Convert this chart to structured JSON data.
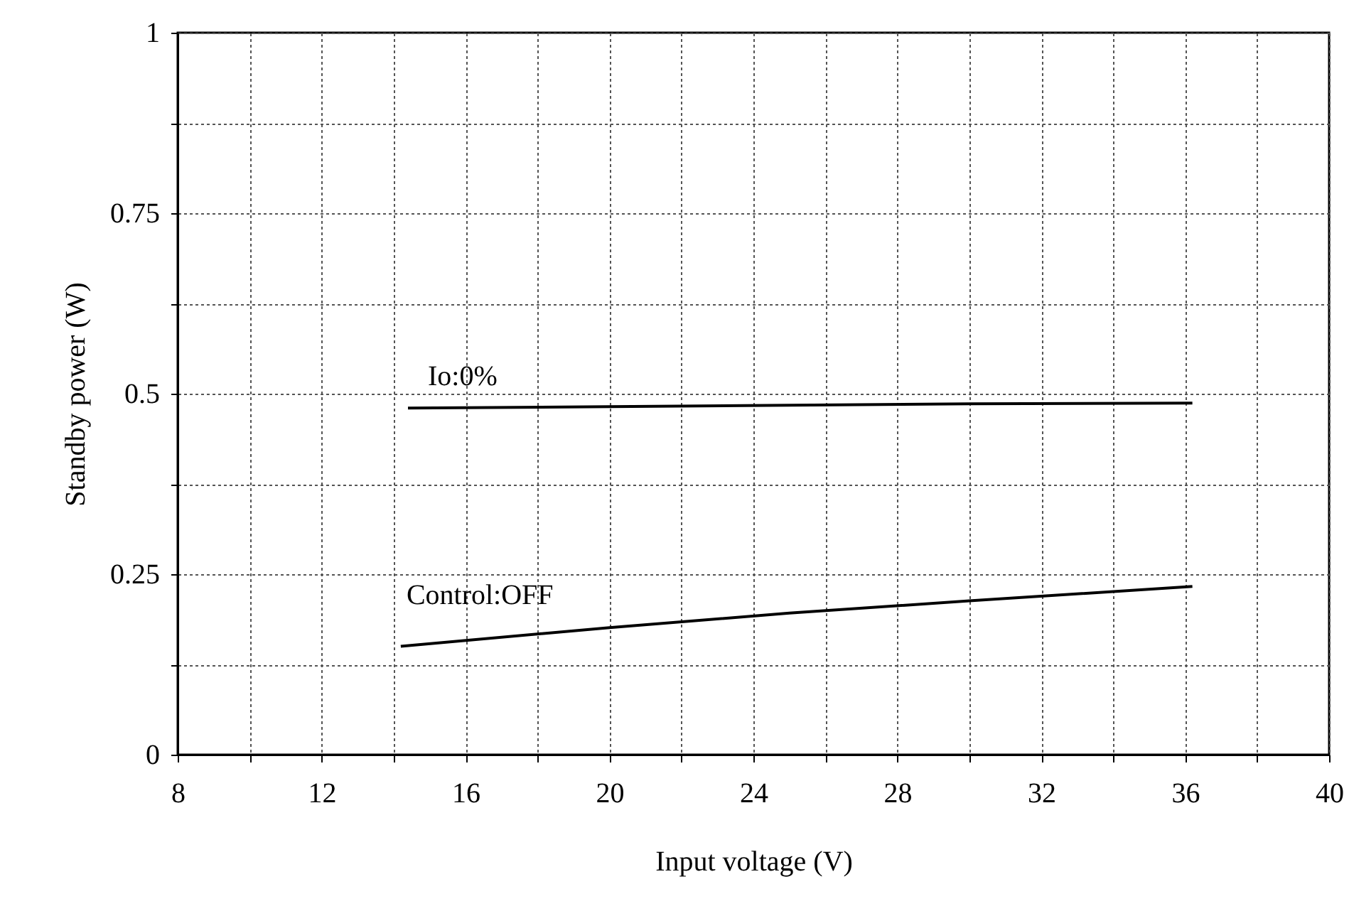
{
  "chart_data": {
    "type": "line",
    "xlabel": "Input voltage (V)",
    "ylabel": "Standby power (W)",
    "xlim": [
      8,
      40
    ],
    "ylim": [
      0,
      1
    ],
    "xticks": [
      8,
      {
        "value": 10,
        "label": null
      },
      12,
      {
        "value": 14,
        "label": null
      },
      16,
      {
        "value": 18,
        "label": null
      },
      20,
      {
        "value": 22,
        "label": null
      },
      24,
      {
        "value": 26,
        "label": null
      },
      28,
      {
        "value": 30,
        "label": null
      },
      32,
      {
        "value": 34,
        "label": null
      },
      36,
      {
        "value": 38,
        "label": null
      },
      40
    ],
    "yticks": [
      0,
      {
        "value": 0.125,
        "label": null
      },
      0.25,
      {
        "value": 0.375,
        "label": null
      },
      0.5,
      {
        "value": 0.625,
        "label": null
      },
      0.75,
      {
        "value": 0.875,
        "label": null
      },
      1
    ],
    "grid": true,
    "line_style": "solid",
    "marker": "none",
    "series": [
      {
        "name": "Io:0%",
        "color": "#000000",
        "x": [
          14.4,
          20,
          25,
          30,
          36.2
        ],
        "values": [
          0.48,
          0.482,
          0.484,
          0.486,
          0.487
        ]
      },
      {
        "name": "Control:OFF",
        "color": "#000000",
        "x": [
          14.2,
          20,
          25,
          30,
          36.2
        ],
        "values": [
          0.15,
          0.176,
          0.196,
          0.213,
          0.233
        ]
      }
    ]
  }
}
